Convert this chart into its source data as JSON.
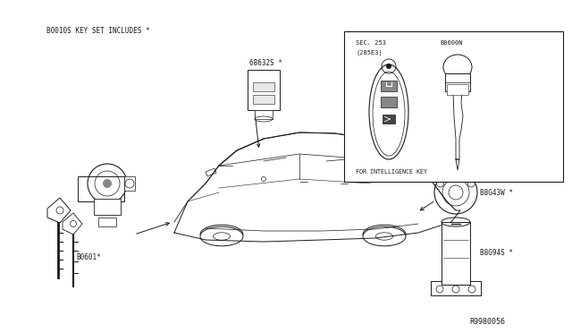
{
  "bg_color": "#ffffff",
  "header_text": "B0010S KEY SET INCLUDES *",
  "line_color": "#1a1a1a",
  "text_color": "#1a1a1a",
  "fig_width": 6.4,
  "fig_height": 3.72,
  "dpi": 100,
  "parts": {
    "B0601": "B0601*",
    "68632S": "68632S *",
    "B0600N": "B0600N",
    "SEC253_1": "SEC. 253",
    "SEC253_2": "(285E3)",
    "intel_key": "FOR INTELLIGENCE KEY",
    "B8643W": "B8G43W *",
    "B8694S": "B8G94S *",
    "diagram_ref": "R9980056"
  },
  "car_body": {
    "outline_x": [
      195,
      215,
      235,
      265,
      290,
      320,
      355,
      400,
      435,
      465,
      490,
      505,
      510,
      500,
      480,
      450,
      410,
      360,
      310,
      265,
      230,
      205,
      195
    ],
    "outline_y": [
      248,
      225,
      205,
      188,
      172,
      162,
      152,
      148,
      150,
      158,
      170,
      185,
      202,
      222,
      242,
      255,
      260,
      258,
      255,
      252,
      250,
      250,
      248
    ]
  }
}
